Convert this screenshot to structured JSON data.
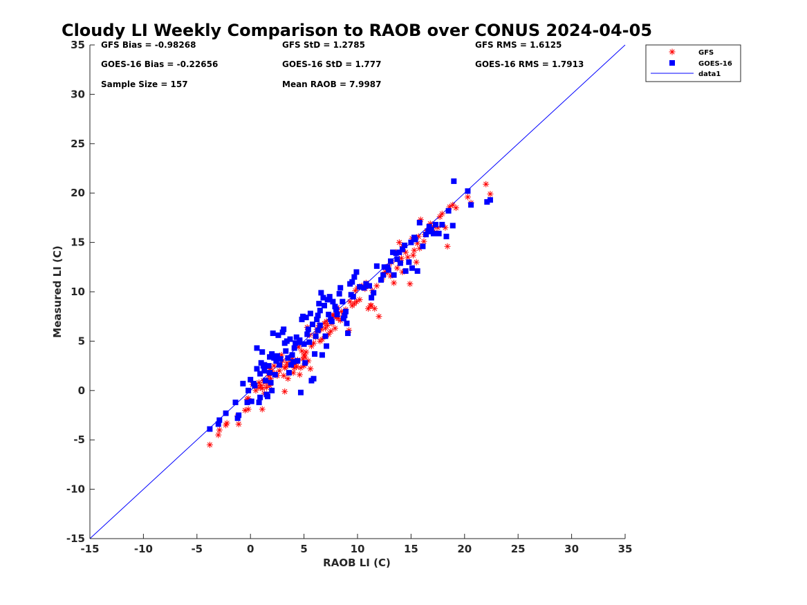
{
  "chart_data": {
    "type": "scatter",
    "title": "Cloudy LI Weekly Comparison to RAOB over CONUS 2024-04-05",
    "xlabel": "RAOB LI (C)",
    "ylabel": "Measured LI (C)",
    "xlim": [
      -15,
      35
    ],
    "ylim": [
      -15,
      35
    ],
    "xticks": [
      -15,
      -10,
      -5,
      0,
      5,
      10,
      15,
      20,
      25,
      30,
      35
    ],
    "yticks": [
      -15,
      -10,
      -5,
      0,
      5,
      10,
      15,
      20,
      25,
      30,
      35
    ],
    "grid": false,
    "legend_position": "top-right, outside plot",
    "stats": [
      [
        "GFS Bias = -0.98268",
        "GFS StD = 1.2785",
        "GFS RMS = 1.6125"
      ],
      [
        "GOES-16 Bias = -0.22656",
        "GOES-16 StD = 1.777",
        "GOES-16 RMS = 1.7913"
      ],
      [
        "Sample Size = 157",
        "Mean RAOB = 7.9987",
        ""
      ]
    ],
    "series": [
      {
        "name": "GFS",
        "marker": "asterisk",
        "color": "#ff0000",
        "points": [
          [
            -3.8,
            -5.5
          ],
          [
            -3,
            -4.5
          ],
          [
            -2.9,
            -4.0
          ],
          [
            -2.3,
            -3.5
          ],
          [
            -2.2,
            -3.3
          ],
          [
            -1.1,
            -3.4
          ],
          [
            -1.2,
            -2.6
          ],
          [
            -0.5,
            -2.0
          ],
          [
            -0.2,
            -1.9
          ],
          [
            -0.2,
            -0.8
          ],
          [
            0.2,
            0.6
          ],
          [
            0.5,
            0.0
          ],
          [
            0.8,
            0.8
          ],
          [
            1,
            0.5
          ],
          [
            1.1,
            0.2
          ],
          [
            1.2,
            1.0
          ],
          [
            1.3,
            -0.3
          ],
          [
            1.1,
            -1.9
          ],
          [
            1.5,
            0.3
          ],
          [
            1.6,
            1.0
          ],
          [
            1.8,
            0.5
          ],
          [
            1.7,
            1.5
          ],
          [
            2,
            2.0
          ],
          [
            2.2,
            2.5
          ],
          [
            2.4,
            1.7
          ],
          [
            2.5,
            1.5
          ],
          [
            2.7,
            2.0
          ],
          [
            2.8,
            2.6
          ],
          [
            3,
            3.0
          ],
          [
            3.1,
            1.5
          ],
          [
            3.2,
            2.3
          ],
          [
            3.2,
            -0.1
          ],
          [
            3.5,
            1.2
          ],
          [
            3.6,
            2.6
          ],
          [
            3.8,
            2.8
          ],
          [
            4,
            1.8
          ],
          [
            4.1,
            2.3
          ],
          [
            4.3,
            2.4
          ],
          [
            4.4,
            3.1
          ],
          [
            4.5,
            4.4
          ],
          [
            4.6,
            1.6
          ],
          [
            4.7,
            2.3
          ],
          [
            4.9,
            3.2
          ],
          [
            5,
            3.6
          ],
          [
            5,
            2.5
          ],
          [
            5.2,
            3.9
          ],
          [
            5.3,
            6.4
          ],
          [
            5.4,
            3.0
          ],
          [
            5.6,
            2.2
          ],
          [
            5.7,
            4.5
          ],
          [
            5.9,
            4.8
          ],
          [
            6,
            5.6
          ],
          [
            6.2,
            6.2
          ],
          [
            6.3,
            6.0
          ],
          [
            6.5,
            5.0
          ],
          [
            6.7,
            5.2
          ],
          [
            6.9,
            6.8
          ],
          [
            7,
            6.3
          ],
          [
            7.2,
            6.6
          ],
          [
            7.3,
            5.7
          ],
          [
            7.5,
            6.0
          ],
          [
            7.6,
            6.8
          ],
          [
            7.9,
            6.3
          ],
          [
            8,
            7.4
          ],
          [
            8.2,
            7.3
          ],
          [
            8.4,
            7.1
          ],
          [
            8.5,
            8.0
          ],
          [
            8.7,
            7.6
          ],
          [
            8.8,
            7.9
          ],
          [
            9.2,
            6.1
          ],
          [
            9.5,
            8.6
          ],
          [
            9.7,
            8.8
          ],
          [
            9.9,
            9.0
          ],
          [
            10.2,
            9.2
          ],
          [
            10.4,
            10.6
          ],
          [
            10.7,
            10.3
          ],
          [
            11,
            8.3
          ],
          [
            11.2,
            8.6
          ],
          [
            11.3,
            8.6
          ],
          [
            11.6,
            8.3
          ],
          [
            12,
            7.5
          ],
          [
            11.8,
            10.6
          ],
          [
            12.3,
            11.3
          ],
          [
            12.5,
            11.8
          ],
          [
            12.8,
            12.0
          ],
          [
            13.1,
            11.6
          ],
          [
            13.4,
            10.9
          ],
          [
            13.7,
            12.4
          ],
          [
            14,
            13.0
          ],
          [
            14.2,
            12.0
          ],
          [
            14.5,
            14.0
          ],
          [
            14.7,
            13.5
          ],
          [
            14.9,
            10.8
          ],
          [
            15.2,
            13.7
          ],
          [
            15.3,
            14.2
          ],
          [
            15.5,
            13.0
          ],
          [
            15.8,
            14.4
          ],
          [
            15.9,
            17.3
          ],
          [
            16.2,
            15.1
          ],
          [
            16.5,
            16.2
          ],
          [
            16.9,
            16.5
          ],
          [
            17.2,
            16.0
          ],
          [
            17.5,
            16.5
          ],
          [
            17.9,
            17.9
          ],
          [
            18.2,
            16.5
          ],
          [
            18.4,
            14.6
          ],
          [
            18.6,
            18.6
          ],
          [
            18.9,
            18.8
          ],
          [
            19.2,
            18.5
          ],
          [
            20.3,
            19.6
          ],
          [
            20.6,
            19.0
          ],
          [
            22,
            20.9
          ],
          [
            22.4,
            19.9
          ],
          [
            13.9,
            15.0
          ],
          [
            14.2,
            14.6
          ],
          [
            13.6,
            14.0
          ],
          [
            9.8,
            10.1
          ],
          [
            10,
            10.4
          ],
          [
            7.7,
            7.6
          ],
          [
            4.2,
            2.7
          ],
          [
            3.3,
            2.4
          ],
          [
            2.9,
            3.6
          ],
          [
            1.9,
            1.2
          ],
          [
            0.9,
            0.3
          ],
          [
            1.4,
            0.8
          ],
          [
            0.6,
            0.4
          ],
          [
            5.1,
            3.4
          ],
          [
            6.6,
            6.2
          ],
          [
            7.1,
            7.0
          ],
          [
            12.6,
            12.0
          ],
          [
            15.6,
            14.9
          ],
          [
            16.3,
            15.8
          ],
          [
            17.1,
            16.6
          ],
          [
            8.9,
            8.2
          ],
          [
            11.4,
            10.1
          ],
          [
            2.1,
            3.4
          ],
          [
            4.8,
            4.0
          ],
          [
            6.1,
            5.4
          ],
          [
            9.3,
            9.0
          ],
          [
            14.1,
            13.4
          ],
          [
            16.8,
            16.9
          ],
          [
            -0.3,
            -0.9
          ],
          [
            1.8,
            2.2
          ],
          [
            3.9,
            3.2
          ],
          [
            5.5,
            5.6
          ],
          [
            7.8,
            7.6
          ],
          [
            10.8,
            10.9
          ],
          [
            12.9,
            12.6
          ],
          [
            15.1,
            15.4
          ],
          [
            17.7,
            17.6
          ],
          [
            3.4,
            2.8
          ],
          [
            2.6,
            3.2
          ],
          [
            6.4,
            6.6
          ],
          [
            8.1,
            8.4
          ],
          [
            13.2,
            13.0
          ],
          [
            15.7,
            15.6
          ]
        ]
      },
      {
        "name": "GOES-16",
        "marker": "square",
        "color": "#0000ff",
        "points": [
          [
            -3.8,
            -3.9
          ],
          [
            -3,
            -3.4
          ],
          [
            -2.9,
            -3.0
          ],
          [
            -2.3,
            -2.3
          ],
          [
            -1.4,
            -1.2
          ],
          [
            -1.1,
            -2.5
          ],
          [
            -0.7,
            0.7
          ],
          [
            -0.3,
            -1.2
          ],
          [
            -0.2,
            0.0
          ],
          [
            0,
            1.1
          ],
          [
            0.3,
            0.7
          ],
          [
            0.6,
            2.2
          ],
          [
            0.6,
            4.3
          ],
          [
            0.8,
            -1.2
          ],
          [
            0.9,
            -0.7
          ],
          [
            1,
            2.8
          ],
          [
            1.1,
            3.9
          ],
          [
            1.2,
            2.5
          ],
          [
            1.3,
            2.0
          ],
          [
            1.4,
            1.0
          ],
          [
            1.5,
            -0.4
          ],
          [
            1.6,
            -0.6
          ],
          [
            1.8,
            1.8
          ],
          [
            1.9,
            0.8
          ],
          [
            2,
            0.0
          ],
          [
            2,
            3.7
          ],
          [
            2.1,
            5.8
          ],
          [
            2.2,
            3.3
          ],
          [
            2.5,
            3.5
          ],
          [
            2.6,
            5.6
          ],
          [
            2.8,
            3.2
          ],
          [
            3,
            5.9
          ],
          [
            3.1,
            6.2
          ],
          [
            3.2,
            4.8
          ],
          [
            3.4,
            5.0
          ],
          [
            3.5,
            3.3
          ],
          [
            3.6,
            1.8
          ],
          [
            3.8,
            2.6
          ],
          [
            4,
            2.9
          ],
          [
            4.1,
            4.3
          ],
          [
            4.3,
            5.4
          ],
          [
            4.4,
            3.0
          ],
          [
            4.6,
            5.1
          ],
          [
            4.7,
            -0.2
          ],
          [
            4.8,
            7.2
          ],
          [
            4.9,
            7.5
          ],
          [
            5,
            4.7
          ],
          [
            5.1,
            2.8
          ],
          [
            5.3,
            5.7
          ],
          [
            5.5,
            4.9
          ],
          [
            5.6,
            7.8
          ],
          [
            5.7,
            1.0
          ],
          [
            5.9,
            1.2
          ],
          [
            6,
            3.7
          ],
          [
            6.1,
            5.5
          ],
          [
            6.2,
            7.2
          ],
          [
            6.3,
            7.6
          ],
          [
            6.4,
            8.8
          ],
          [
            6.5,
            6.6
          ],
          [
            6.6,
            9.9
          ],
          [
            6.7,
            3.6
          ],
          [
            6.8,
            9.4
          ],
          [
            6.9,
            8.6
          ],
          [
            7,
            5.5
          ],
          [
            7.1,
            4.5
          ],
          [
            7.2,
            9.2
          ],
          [
            7.4,
            9.5
          ],
          [
            7.5,
            7.2
          ],
          [
            7.7,
            9.0
          ],
          [
            7.9,
            8.5
          ],
          [
            8,
            8.2
          ],
          [
            8.3,
            9.8
          ],
          [
            8.4,
            10.4
          ],
          [
            8.6,
            9.0
          ],
          [
            8.8,
            7.6
          ],
          [
            9,
            6.8
          ],
          [
            9.1,
            5.8
          ],
          [
            9.3,
            10.8
          ],
          [
            9.5,
            11.0
          ],
          [
            9.7,
            11.5
          ],
          [
            9.9,
            12.0
          ],
          [
            10.2,
            10.5
          ],
          [
            10.8,
            10.8
          ],
          [
            11.3,
            9.4
          ],
          [
            11.5,
            9.9
          ],
          [
            11.8,
            12.6
          ],
          [
            12.2,
            11.2
          ],
          [
            12.5,
            12.5
          ],
          [
            12.8,
            12.5
          ],
          [
            13.1,
            13.1
          ],
          [
            13.4,
            11.7
          ],
          [
            13.7,
            13.3
          ],
          [
            13.9,
            14.0
          ],
          [
            14.2,
            14.3
          ],
          [
            14.5,
            12.1
          ],
          [
            14.8,
            13.0
          ],
          [
            15,
            15.0
          ],
          [
            15.1,
            12.4
          ],
          [
            15.3,
            15.5
          ],
          [
            15.6,
            12.1
          ],
          [
            15.8,
            17.0
          ],
          [
            16.1,
            14.6
          ],
          [
            16.4,
            15.8
          ],
          [
            16.6,
            16.1
          ],
          [
            16.9,
            16.3
          ],
          [
            17.3,
            16.8
          ],
          [
            17.6,
            15.9
          ],
          [
            17.9,
            16.8
          ],
          [
            18.3,
            15.6
          ],
          [
            18.5,
            18.2
          ],
          [
            18.9,
            16.7
          ],
          [
            19,
            21.2
          ],
          [
            20.3,
            20.2
          ],
          [
            20.6,
            18.8
          ],
          [
            22.1,
            19.1
          ],
          [
            22.4,
            19.3
          ],
          [
            14.4,
            14.7
          ],
          [
            13.3,
            14.0
          ],
          [
            12.9,
            12.2
          ],
          [
            9.4,
            9.7
          ],
          [
            9.6,
            9.5
          ],
          [
            8.9,
            8.0
          ],
          [
            7.3,
            7.7
          ],
          [
            7.6,
            7.0
          ],
          [
            6.5,
            8.1
          ],
          [
            5.8,
            6.7
          ],
          [
            5.2,
            7.4
          ],
          [
            4.6,
            4.9
          ],
          [
            4.2,
            4.8
          ],
          [
            3.9,
            3.6
          ],
          [
            3.3,
            4.0
          ],
          [
            2.7,
            2.6
          ],
          [
            2.4,
            3.0
          ],
          [
            1.7,
            2.5
          ],
          [
            1.3,
            2.6
          ],
          [
            0.9,
            1.7
          ],
          [
            0.4,
            0.5
          ],
          [
            0.1,
            -1.1
          ],
          [
            -1.2,
            -2.8
          ],
          [
            11.1,
            10.6
          ],
          [
            12.4,
            11.7
          ],
          [
            15.4,
            15.3
          ],
          [
            16.7,
            16.6
          ],
          [
            17.1,
            15.9
          ],
          [
            14,
            12.9
          ],
          [
            10.6,
            10.4
          ],
          [
            8.7,
            7.3
          ],
          [
            6.3,
            6.1
          ],
          [
            5.4,
            6.2
          ],
          [
            3.7,
            5.2
          ],
          [
            2.3,
            1.6
          ],
          [
            1.8,
            3.4
          ],
          [
            8.1,
            7.7
          ],
          [
            13.6,
            13.9
          ]
        ]
      },
      {
        "name": "data1",
        "marker": "line",
        "color": "#0000ff",
        "points": [
          [
            -15,
            -15
          ],
          [
            35,
            35
          ]
        ]
      }
    ]
  }
}
